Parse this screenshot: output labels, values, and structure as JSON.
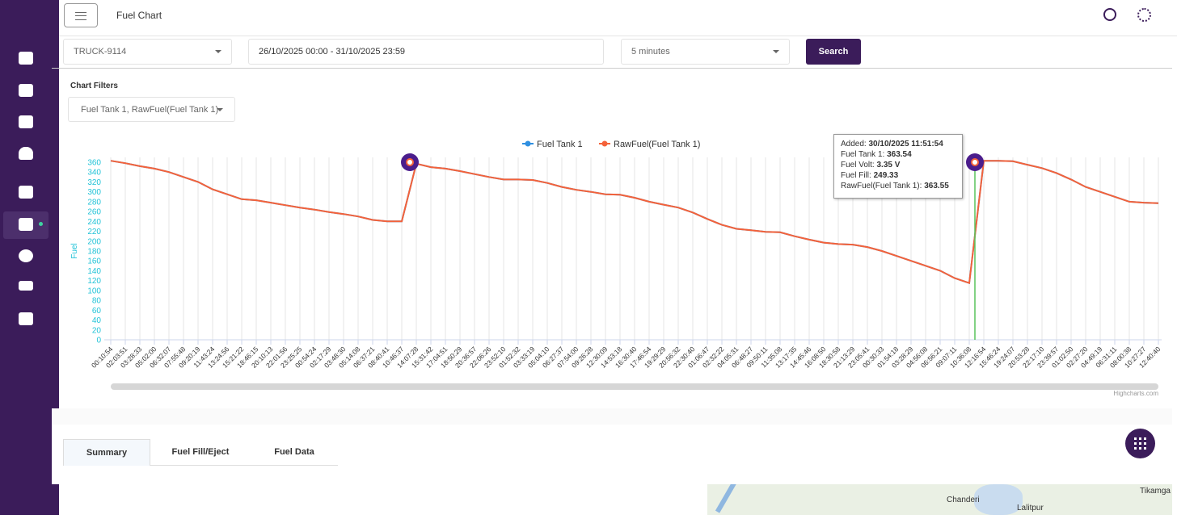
{
  "header": {
    "title": "Fuel Chart"
  },
  "filters": {
    "vehicle": "TRUCK-9114",
    "date_range": "26/10/2025 00:00 - 31/10/2025 23:59",
    "interval": "5 minutes",
    "search": "Search"
  },
  "chart_filters": {
    "label": "Chart Filters",
    "selected": "Fuel Tank 1, RawFuel(Fuel Tank 1)"
  },
  "chart_data": {
    "type": "line",
    "y_label": "Fuel",
    "credit": "Highcharts.com",
    "xgrid": true,
    "categories": [
      "00:10:54",
      "02:03:51",
      "03:28:33",
      "05:02:00",
      "06:32:07",
      "07:55:48",
      "09:20:19",
      "11:43:24",
      "13:24:56",
      "15:21:22",
      "18:46:15",
      "20:10:13",
      "22:01:56",
      "23:25:25",
      "00:54:24",
      "02:17:29",
      "03:48:30",
      "05:14:08",
      "06:37:21",
      "08:40:41",
      "10:46:37",
      "14:07:28",
      "15:31:42",
      "17:04:51",
      "18:50:29",
      "20:36:57",
      "22:06:26",
      "23:52:10",
      "01:52:32",
      "03:33:19",
      "05:04:10",
      "06:27:37",
      "07:54:00",
      "09:26:28",
      "12:30:09",
      "14:53:18",
      "16:30:40",
      "17:46:54",
      "19:29:29",
      "20:56:32",
      "22:30:40",
      "01:06:47",
      "02:32:22",
      "04:05:31",
      "06:48:27",
      "09:50:11",
      "11:35:08",
      "13:17:35",
      "14:45:46",
      "16:08:50",
      "18:30:58",
      "21:13:29",
      "23:05:41",
      "00:30:33",
      "01:54:18",
      "03:28:29",
      "04:56:08",
      "06:56:21",
      "09:07:11",
      "10:36:08",
      "12:16:54",
      "15:46:24",
      "19:24:07",
      "20:53:28",
      "22:17:10",
      "23:39:57",
      "01:02:50",
      "02:27:20",
      "04:49:19",
      "06:31:11",
      "08:00:38",
      "10:27:27",
      "12:40:40"
    ],
    "series": [
      {
        "name": "Fuel Tank 1",
        "color": "#2f8fe0",
        "values": [
          363,
          358,
          352,
          347,
          340,
          330,
          320,
          305,
          295,
          285,
          283,
          278,
          273,
          268,
          264,
          259,
          255,
          250,
          243,
          240,
          240,
          357,
          350,
          347,
          342,
          336,
          330,
          325,
          325,
          324,
          318,
          310,
          304,
          300,
          295,
          294,
          288,
          280,
          274,
          268,
          258,
          245,
          233,
          225,
          222,
          219,
          218,
          210,
          203,
          197,
          194,
          193,
          188,
          180,
          170,
          160,
          150,
          140,
          125,
          115,
          363,
          363,
          362,
          355,
          348,
          338,
          325,
          310,
          300,
          290,
          280,
          278,
          277
        ]
      },
      {
        "name": "RawFuel(Fuel Tank 1)",
        "color": "#f4623a",
        "values": [
          363,
          358,
          352,
          347,
          340,
          330,
          320,
          305,
          295,
          285,
          283,
          278,
          273,
          268,
          264,
          259,
          255,
          250,
          243,
          240,
          240,
          357,
          350,
          347,
          342,
          336,
          330,
          325,
          325,
          324,
          318,
          310,
          304,
          300,
          295,
          294,
          288,
          280,
          274,
          268,
          258,
          245,
          233,
          225,
          222,
          219,
          218,
          210,
          203,
          197,
          194,
          193,
          188,
          180,
          170,
          160,
          150,
          140,
          125,
          115,
          363,
          363,
          362,
          355,
          348,
          338,
          325,
          310,
          300,
          290,
          280,
          278,
          277
        ]
      }
    ],
    "ylim": [
      0,
      360
    ],
    "yticks": [
      0,
      20,
      40,
      60,
      80,
      100,
      120,
      140,
      160,
      180,
      200,
      220,
      240,
      260,
      280,
      300,
      320,
      340,
      360
    ]
  },
  "tooltip": {
    "rows": [
      {
        "label": "Added:",
        "value": "30/10/2025 11:51:54"
      },
      {
        "label": "Fuel Tank 1:",
        "value": "363.54"
      },
      {
        "label": "Fuel Volt:",
        "value": "3.35 V"
      },
      {
        "label": "Fuel Fill:",
        "value": "249.33"
      },
      {
        "label": "RawFuel(Fuel Tank 1):",
        "value": "363.55"
      }
    ]
  },
  "tabs": [
    "Summary",
    "Fuel Fill/Eject",
    "Fuel Data"
  ],
  "map_labels": [
    "Chanderi",
    "Lalitpur",
    "Tikamga"
  ]
}
